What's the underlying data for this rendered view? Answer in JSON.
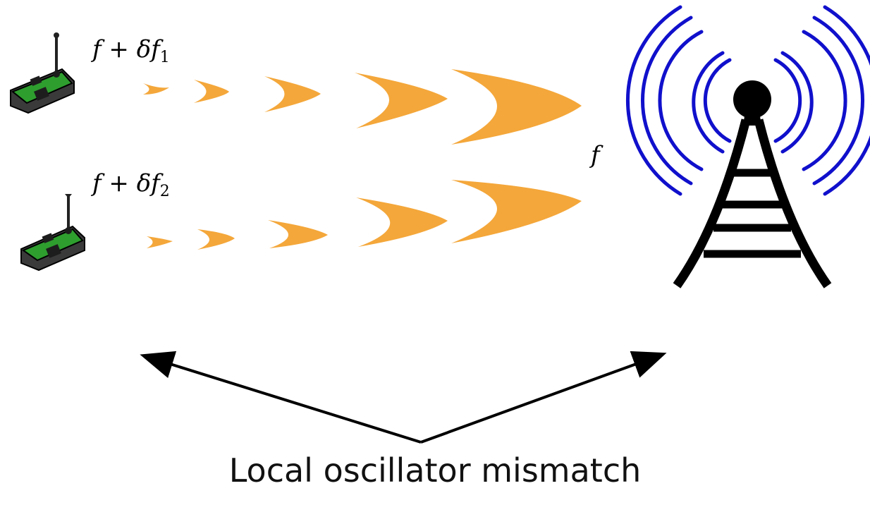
{
  "labels": {
    "device1_expr": "f + δf",
    "device1_sub": "1",
    "device2_expr": "f + δf",
    "device2_sub": "2",
    "base_station_freq": "f"
  },
  "caption": "Local oscillator mismatch",
  "icons": {
    "device": "sensor-node-icon",
    "tower": "radio-tower-icon"
  },
  "colors": {
    "wave": "#F4A73A",
    "tower_waves": "#1010CC",
    "device_body": "#3a3a3a",
    "device_board": "#2E9E2E"
  }
}
